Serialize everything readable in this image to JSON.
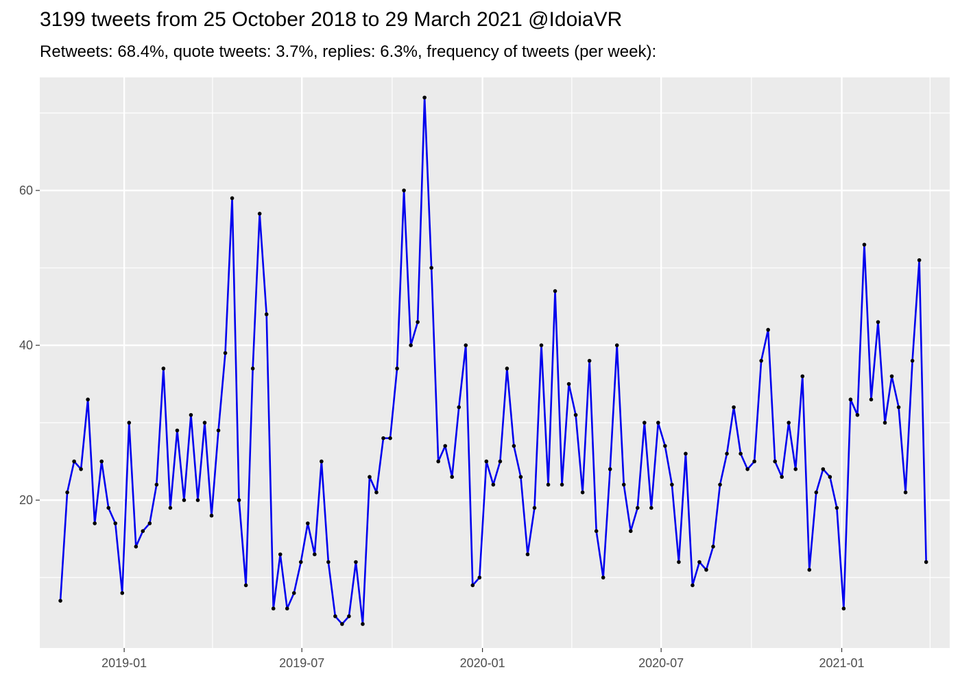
{
  "chart_data": {
    "type": "line",
    "title": "3199 tweets from 25 October 2018 to 29 March 2021 @IdoiaVR",
    "subtitle": "Retweets: 68.4%, quote tweets: 3.7%, replies: 6.3%, frequency of tweets (per week):",
    "xlabel": "",
    "ylabel": "",
    "x_start": "2018-10-28",
    "x_step_days": 7,
    "xlim": [
      "2018-10-07",
      "2021-04-21"
    ],
    "ylim": [
      0.9,
      74.6
    ],
    "x_ticks": [
      {
        "date": "2019-01-01",
        "label": "2019-01"
      },
      {
        "date": "2019-07-01",
        "label": "2019-07"
      },
      {
        "date": "2020-01-01",
        "label": "2020-01"
      },
      {
        "date": "2020-07-01",
        "label": "2020-07"
      },
      {
        "date": "2021-01-01",
        "label": "2021-01"
      }
    ],
    "x_minor_ticks": [
      "2018-10-01",
      "2019-04-01",
      "2019-10-01",
      "2020-04-01",
      "2020-10-01",
      "2021-04-01"
    ],
    "y_ticks": [
      20,
      40,
      60
    ],
    "y_minor_ticks": [
      10,
      30,
      50,
      70
    ],
    "grid": true,
    "line_color": "#0000ee",
    "point_color": "#000000",
    "panel_background": "#ebebeb",
    "values": [
      7,
      21,
      25,
      24,
      33,
      17,
      25,
      19,
      17,
      8,
      30,
      14,
      16,
      17,
      22,
      37,
      19,
      29,
      20,
      31,
      20,
      30,
      18,
      29,
      39,
      59,
      20,
      9,
      37,
      57,
      44,
      6,
      13,
      6,
      8,
      12,
      17,
      13,
      25,
      12,
      5,
      4,
      5,
      12,
      4,
      23,
      21,
      28,
      28,
      37,
      60,
      40,
      43,
      72,
      50,
      25,
      27,
      23,
      32,
      40,
      9,
      10,
      25,
      22,
      25,
      37,
      27,
      23,
      13,
      19,
      40,
      22,
      47,
      22,
      35,
      31,
      21,
      38,
      16,
      10,
      24,
      40,
      22,
      16,
      19,
      30,
      19,
      30,
      27,
      22,
      12,
      26,
      9,
      12,
      11,
      14,
      22,
      26,
      32,
      26,
      24,
      25,
      38,
      42,
      25,
      23,
      30,
      24,
      36,
      11,
      21,
      24,
      23,
      19,
      6,
      33,
      31,
      53,
      33,
      43,
      30,
      36,
      32,
      21,
      38,
      51,
      12
    ]
  }
}
